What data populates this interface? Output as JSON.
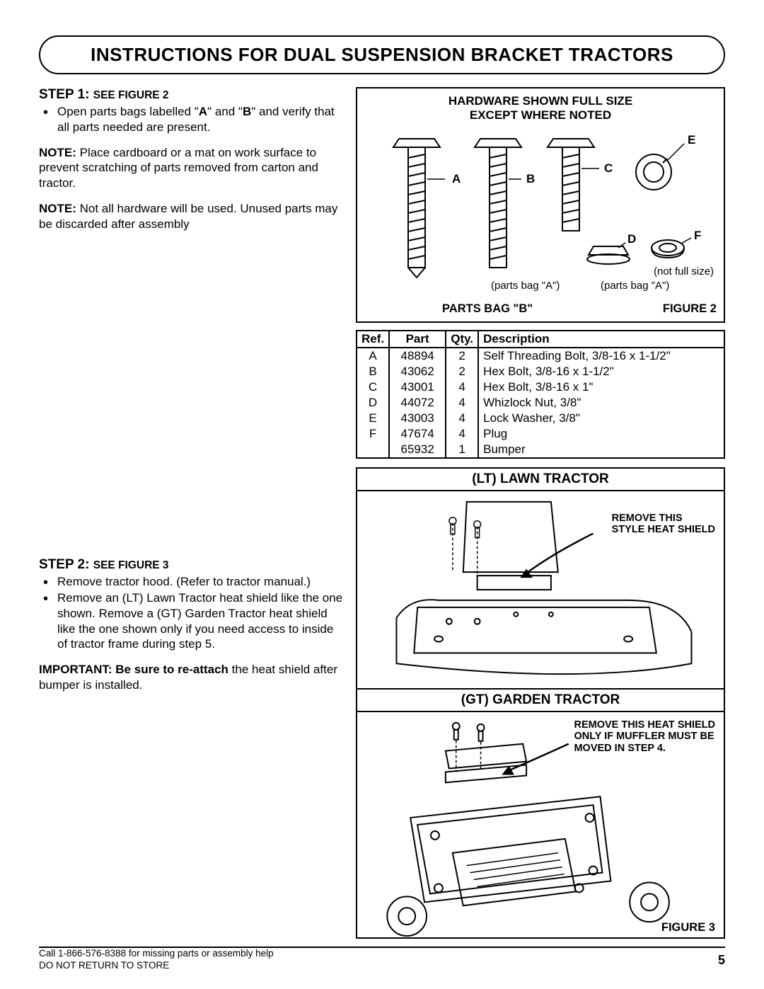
{
  "title": "INSTRUCTIONS FOR DUAL SUSPENSION BRACKET TRACTORS",
  "step1": {
    "heading": "STEP 1:",
    "subheading": "SEE FIGURE 2",
    "bullet1_a": "Open parts bags labelled \"",
    "bullet1_b": "A",
    "bullet1_c": "\" and \"",
    "bullet1_d": "B",
    "bullet1_e": "\" and verify that all parts needed are present.",
    "note1_label": "NOTE:",
    "note1_text": " Place cardboard or a mat on work surface to prevent scratching of parts removed from carton and tractor.",
    "note2_label": "NOTE:",
    "note2_text": " Not all hardware will be used. Unused parts may be discarded after assembly"
  },
  "hardware": {
    "title_l1": "HARDWARE SHOWN FULL SIZE",
    "title_l2": "EXCEPT WHERE NOTED",
    "labels": {
      "A": "A",
      "B": "B",
      "C": "C",
      "D": "D",
      "E": "E",
      "F": "F"
    },
    "notfull": "(not full size)",
    "bagA_1": "(parts bag \"A\")",
    "bagA_2": "(parts bag \"A\")",
    "footer_left": "PARTS BAG \"B\"",
    "footer_right": "FIGURE 2"
  },
  "parts_table": {
    "headers": {
      "ref": "Ref.",
      "part": "Part",
      "qty": "Qty.",
      "desc": "Description"
    },
    "rows": [
      {
        "ref": "A",
        "part": "48894",
        "qty": "2",
        "desc": "Self Threading Bolt, 3/8-16 x 1-1/2\""
      },
      {
        "ref": "B",
        "part": "43062",
        "qty": "2",
        "desc": "Hex Bolt, 3/8-16 x 1-1/2\""
      },
      {
        "ref": "C",
        "part": "43001",
        "qty": "4",
        "desc": "Hex Bolt, 3/8-16 x 1\""
      },
      {
        "ref": "D",
        "part": "44072",
        "qty": "4",
        "desc": "Whizlock Nut, 3/8\""
      },
      {
        "ref": "E",
        "part": "43003",
        "qty": "4",
        "desc": "Lock Washer, 3/8\""
      },
      {
        "ref": "F",
        "part": "47674",
        "qty": "4",
        "desc": "Plug"
      },
      {
        "ref": "",
        "part": "65932",
        "qty": "1",
        "desc": "Bumper"
      }
    ]
  },
  "step2": {
    "heading": "STEP 2:",
    "subheading": "SEE FIGURE 3",
    "bullet1": "Remove tractor hood. (Refer to tractor manual.)",
    "bullet2": "Remove an (LT) Lawn Tractor heat shield like the one shown. Remove a (GT) Garden Tractor heat shield like the one shown only if you need access to inside of tractor frame during step 5.",
    "important_label": "IMPORTANT: Be sure to re-attach",
    "important_text": " the heat shield after bumper is installed."
  },
  "fig3": {
    "lt_title": "(LT) LAWN TRACTOR",
    "lt_callout_l1": "REMOVE THIS",
    "lt_callout_l2": "STYLE HEAT SHIELD",
    "gt_title": "(GT) GARDEN TRACTOR",
    "gt_callout_l1": "REMOVE THIS HEAT SHIELD",
    "gt_callout_l2": "ONLY IF MUFFLER MUST BE",
    "gt_callout_l3": "MOVED IN STEP 4.",
    "label": "FIGURE 3"
  },
  "footer": {
    "line1": "Call 1-866-576-8388 for missing parts or assembly help",
    "line2": "DO NOT RETURN TO STORE",
    "page": "5"
  },
  "colors": {
    "stroke": "#000000",
    "bg": "#ffffff"
  }
}
